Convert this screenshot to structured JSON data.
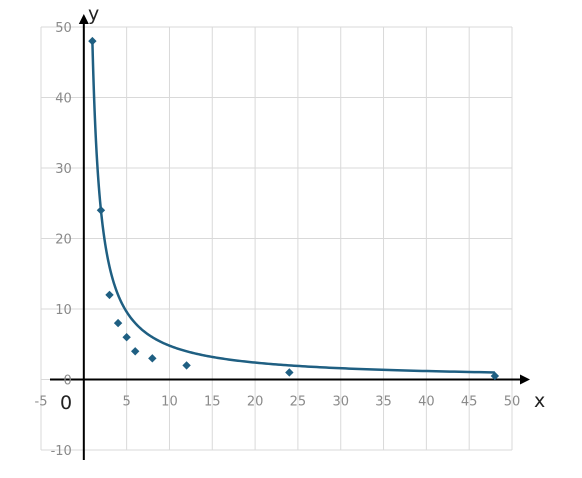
{
  "chart_data": {
    "type": "scatter",
    "xlabel": "x",
    "ylabel": "y",
    "origin_label": "0",
    "xlim": [
      -5,
      50
    ],
    "ylim": [
      -10,
      50
    ],
    "x_ticks": [
      -5,
      5,
      10,
      15,
      20,
      25,
      30,
      35,
      40,
      45,
      50
    ],
    "y_ticks": [
      -10,
      0,
      10,
      20,
      30,
      40,
      50
    ],
    "grid": true,
    "points": [
      {
        "x": 1,
        "y": 48
      },
      {
        "x": 2,
        "y": 24
      },
      {
        "x": 3,
        "y": 12
      },
      {
        "x": 4,
        "y": 8
      },
      {
        "x": 5,
        "y": 6
      },
      {
        "x": 6,
        "y": 4
      },
      {
        "x": 8,
        "y": 3
      },
      {
        "x": 12,
        "y": 2
      },
      {
        "x": 24,
        "y": 1
      },
      {
        "x": 48,
        "y": 0.5
      }
    ],
    "curve": "y = 48/x",
    "colors": {
      "series": "#1f5f82",
      "grid": "#d9d9d9",
      "axis": "#000000",
      "tick": "#8a8a8a"
    }
  }
}
